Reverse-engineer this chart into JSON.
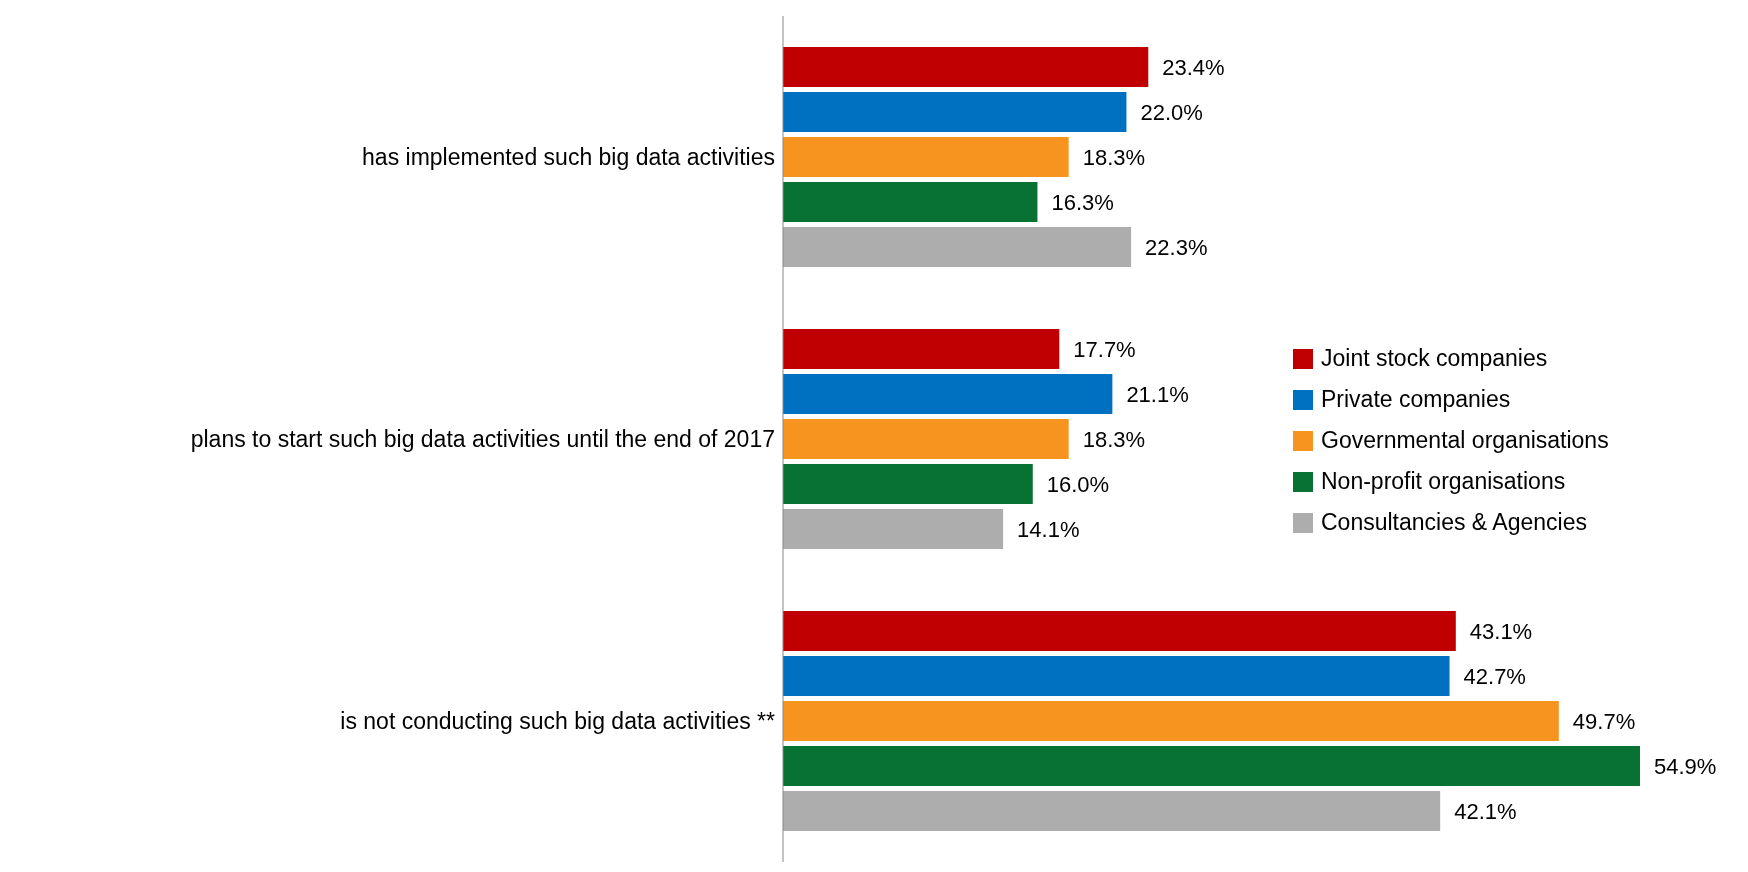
{
  "chart_data": {
    "type": "bar",
    "orientation": "horizontal",
    "categories": [
      "has implemented such big data activities",
      "plans to start such big data activities until the end of 2017",
      "is not conducting such big data activities **"
    ],
    "series": [
      {
        "name": "Joint stock companies",
        "color": "#c00000",
        "values": [
          23.4,
          17.7,
          43.1
        ],
        "value_labels": [
          "23.4%",
          "17.7%",
          "43.1%"
        ]
      },
      {
        "name": "Private companies",
        "color": "#0070c0",
        "values": [
          22.0,
          21.1,
          42.7
        ],
        "value_labels": [
          "22.0%",
          "21.1%",
          "42.7%"
        ]
      },
      {
        "name": "Governmental organisations",
        "color": "#f79420",
        "values": [
          18.3,
          18.3,
          49.7
        ],
        "value_labels": [
          "18.3%",
          "18.3%",
          "49.7%"
        ]
      },
      {
        "name": "Non-profit organisations",
        "color": "#077231",
        "values": [
          16.3,
          16.0,
          54.9
        ],
        "value_labels": [
          "16.3%",
          "16.0%",
          "54.9%"
        ]
      },
      {
        "name": "Consultancies & Agencies",
        "color": "#adadad",
        "values": [
          22.3,
          14.1,
          42.1
        ],
        "value_labels": [
          "22.3%",
          "14.1%",
          "42.1%"
        ]
      }
    ],
    "legend": "right",
    "grid": false,
    "tick_labels": "y"
  }
}
